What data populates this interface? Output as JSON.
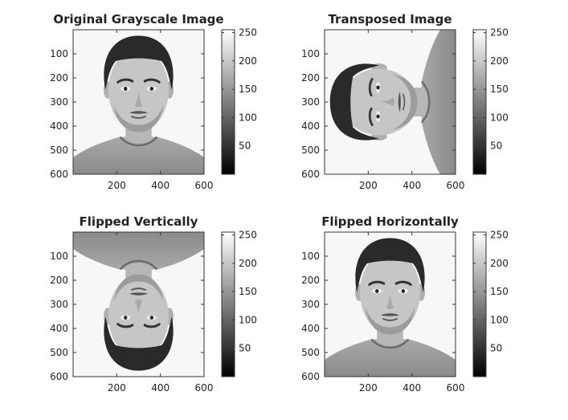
{
  "chart_data": [
    {
      "type": "image",
      "title": "Original Grayscale Image",
      "orientation": "original",
      "x_ticks": [
        200,
        400,
        600
      ],
      "y_ticks": [
        100,
        200,
        300,
        400,
        500,
        600
      ],
      "xlim": [
        0,
        600
      ],
      "ylim": [
        0,
        600
      ],
      "colorbar": {
        "ticks": [
          50,
          100,
          150,
          200,
          250
        ],
        "range": [
          0,
          255
        ],
        "colormap": "gray"
      }
    },
    {
      "type": "image",
      "title": "Transposed Image",
      "orientation": "transposed",
      "x_ticks": [
        200,
        400,
        600
      ],
      "y_ticks": [
        100,
        200,
        300,
        400,
        500,
        600
      ],
      "xlim": [
        0,
        600
      ],
      "ylim": [
        0,
        600
      ],
      "colorbar": {
        "ticks": [
          50,
          100,
          150,
          200,
          250
        ],
        "range": [
          0,
          255
        ],
        "colormap": "gray"
      }
    },
    {
      "type": "image",
      "title": "Flipped Vertically",
      "orientation": "flipped-vertical",
      "x_ticks": [
        200,
        400,
        600
      ],
      "y_ticks": [
        100,
        200,
        300,
        400,
        500,
        600
      ],
      "xlim": [
        0,
        600
      ],
      "ylim": [
        0,
        600
      ],
      "colorbar": {
        "ticks": [
          50,
          100,
          150,
          200,
          250
        ],
        "range": [
          0,
          255
        ],
        "colormap": "gray"
      }
    },
    {
      "type": "image",
      "title": "Flipped Horizontally",
      "orientation": "flipped-horizontal",
      "x_ticks": [
        200,
        400,
        600
      ],
      "y_ticks": [
        100,
        200,
        300,
        400,
        500,
        600
      ],
      "xlim": [
        0,
        600
      ],
      "ylim": [
        0,
        600
      ],
      "colorbar": {
        "ticks": [
          50,
          100,
          150,
          200,
          250
        ],
        "range": [
          0,
          255
        ],
        "colormap": "gray"
      }
    }
  ]
}
